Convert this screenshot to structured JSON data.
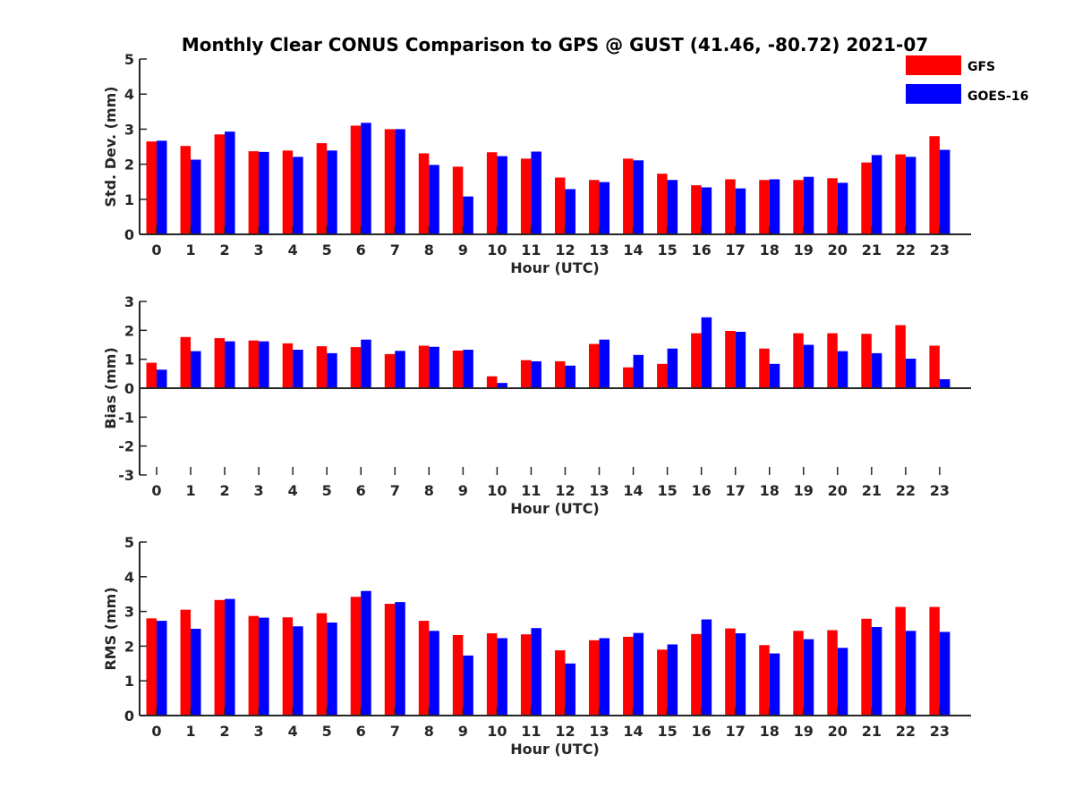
{
  "chart_data": {
    "type": "bar",
    "title": "Monthly Clear CONUS Comparison to GPS @ GUST (41.46, -80.72) 2021-07",
    "legend": {
      "placement": "top-right",
      "entries": [
        {
          "name": "GFS",
          "color": "#ff0000"
        },
        {
          "name": "GOES-16",
          "color": "#0000ff"
        }
      ]
    },
    "categories": [
      "0",
      "1",
      "2",
      "3",
      "4",
      "5",
      "6",
      "7",
      "8",
      "9",
      "10",
      "11",
      "12",
      "13",
      "14",
      "15",
      "16",
      "17",
      "18",
      "19",
      "20",
      "21",
      "22",
      "23"
    ],
    "panels": [
      {
        "ylabel": "Std. Dev. (mm)",
        "xlabel": "Hour (UTC)",
        "ylim": [
          0,
          5
        ],
        "yticks": [
          0,
          1,
          2,
          3,
          4,
          5
        ],
        "series": [
          {
            "name": "GFS",
            "values": [
              2.65,
              2.52,
              2.85,
              2.37,
              2.39,
              2.6,
              3.1,
              3.0,
              2.31,
              1.93,
              2.34,
              2.16,
              1.62,
              1.55,
              2.16,
              1.73,
              1.4,
              1.57,
              1.55,
              1.55,
              1.6,
              2.05,
              2.28,
              2.8
            ]
          },
          {
            "name": "GOES-16",
            "values": [
              2.67,
              2.13,
              2.93,
              2.35,
              2.21,
              2.39,
              3.18,
              3.0,
              1.98,
              1.08,
              2.23,
              2.36,
              1.29,
              1.49,
              2.11,
              1.55,
              1.34,
              1.31,
              1.57,
              1.64,
              1.47,
              2.26,
              2.21,
              2.41
            ]
          }
        ]
      },
      {
        "ylabel": "Bias (mm)",
        "xlabel": "Hour (UTC)",
        "ylim": [
          -3,
          3
        ],
        "yticks": [
          -3,
          -2,
          -1,
          0,
          1,
          2,
          3
        ],
        "series": [
          {
            "name": "GFS",
            "values": [
              0.88,
              1.77,
              1.73,
              1.65,
              1.55,
              1.45,
              1.42,
              1.18,
              1.47,
              1.3,
              0.41,
              0.97,
              0.93,
              1.53,
              0.72,
              0.84,
              1.9,
              1.98,
              1.37,
              1.9,
              1.9,
              1.88,
              2.18,
              1.47
            ]
          },
          {
            "name": "GOES-16",
            "values": [
              0.64,
              1.28,
              1.62,
              1.62,
              1.33,
              1.21,
              1.68,
              1.29,
              1.43,
              1.33,
              0.18,
              0.93,
              0.78,
              1.68,
              1.15,
              1.37,
              2.45,
              1.95,
              0.84,
              1.5,
              1.28,
              1.21,
              1.02,
              0.31
            ]
          }
        ]
      },
      {
        "ylabel": "RMS (mm)",
        "xlabel": "Hour (UTC)",
        "ylim": [
          0,
          5
        ],
        "yticks": [
          0,
          1,
          2,
          3,
          4,
          5
        ],
        "series": [
          {
            "name": "GFS",
            "values": [
              2.8,
              3.05,
              3.33,
              2.87,
              2.83,
              2.95,
              3.42,
              3.22,
              2.73,
              2.32,
              2.37,
              2.34,
              1.88,
              2.17,
              2.27,
              1.9,
              2.35,
              2.51,
              2.03,
              2.44,
              2.46,
              2.79,
              3.13,
              3.13
            ]
          },
          {
            "name": "GOES-16",
            "values": [
              2.73,
              2.5,
              3.36,
              2.82,
              2.57,
              2.68,
              3.59,
              3.27,
              2.44,
              1.73,
              2.23,
              2.52,
              1.5,
              2.23,
              2.38,
              2.05,
              2.77,
              2.37,
              1.79,
              2.2,
              1.95,
              2.55,
              2.44,
              2.41
            ]
          }
        ]
      }
    ]
  }
}
